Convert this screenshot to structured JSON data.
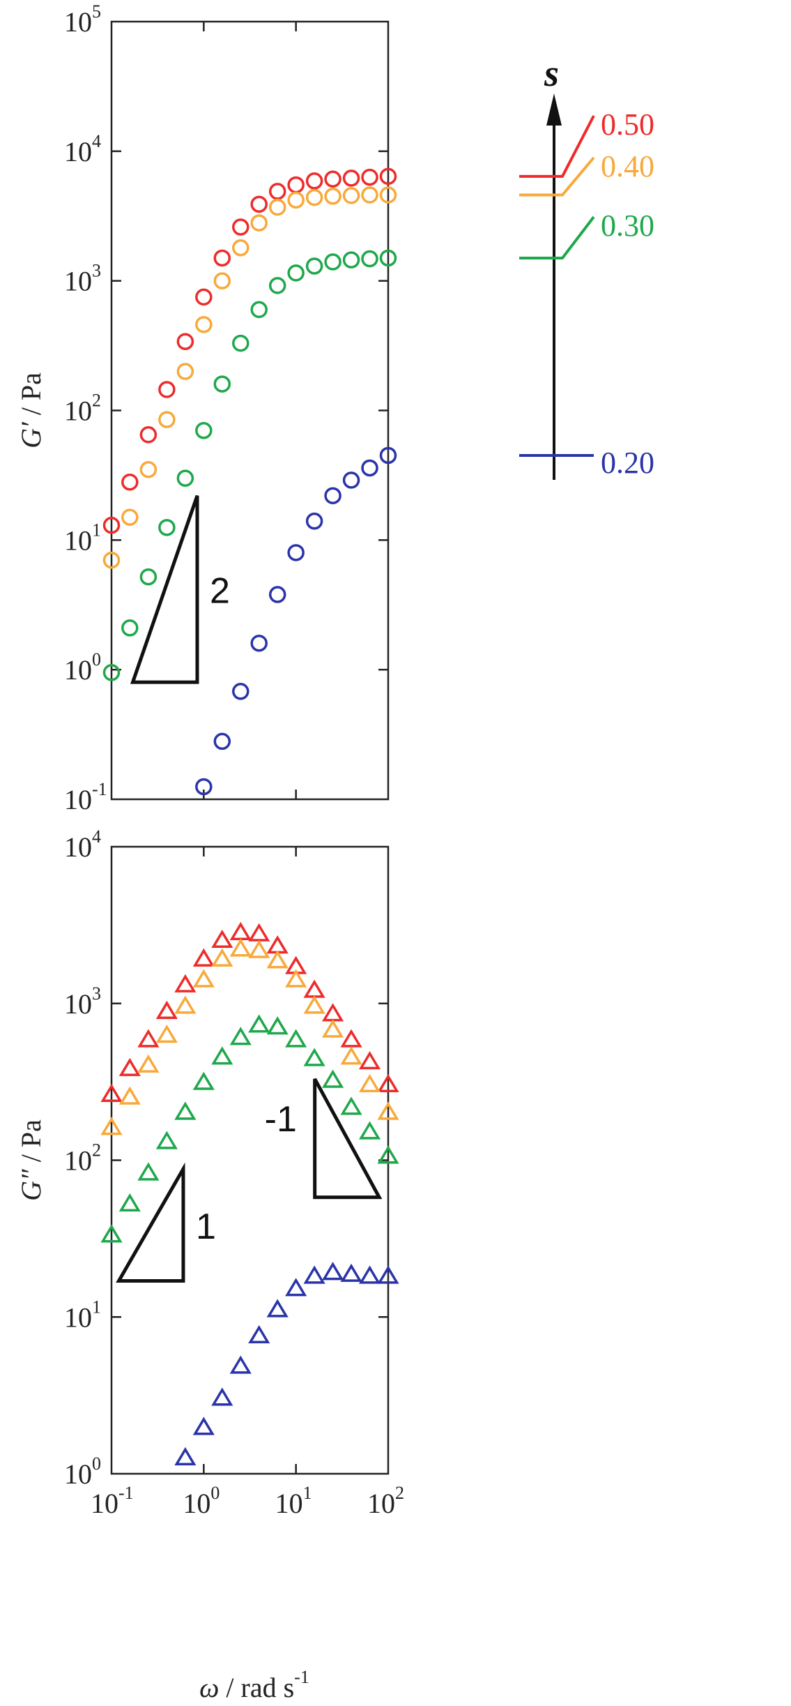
{
  "chart_data": [
    {
      "type": "scatter",
      "panel": "top",
      "ylabel_symbol": "G′",
      "ylabel_unit": " / Pa",
      "ylabel": "G′ / Pa",
      "xscale": "log",
      "yscale": "log",
      "xlim": [
        0.1,
        100
      ],
      "ylim": [
        0.1,
        100000
      ],
      "y_tick_exponents": [
        "5",
        "4",
        "3",
        "2",
        "1",
        "0",
        "-1"
      ],
      "marker": "circle",
      "series": [
        {
          "name": "0.50",
          "color": "#ee2b2b",
          "x": [
            0.1,
            0.158,
            0.251,
            0.398,
            0.631,
            1.0,
            1.585,
            2.512,
            3.981,
            6.31,
            10,
            15.85,
            25.12,
            39.81,
            63.1,
            100
          ],
          "y": [
            13,
            28,
            65,
            145,
            340,
            750,
            1500,
            2600,
            3900,
            4900,
            5500,
            5900,
            6100,
            6200,
            6300,
            6400
          ]
        },
        {
          "name": "0.40",
          "color": "#f8a93a",
          "x": [
            0.1,
            0.158,
            0.251,
            0.398,
            0.631,
            1.0,
            1.585,
            2.512,
            3.981,
            6.31,
            10,
            15.85,
            25.12,
            39.81,
            63.1,
            100
          ],
          "y": [
            7,
            15,
            35,
            85,
            200,
            460,
            1000,
            1800,
            2800,
            3700,
            4200,
            4400,
            4500,
            4550,
            4600,
            4600
          ]
        },
        {
          "name": "0.30",
          "color": "#1ea84b",
          "x": [
            0.1,
            0.158,
            0.251,
            0.398,
            0.631,
            1.0,
            1.585,
            2.512,
            3.981,
            6.31,
            10,
            15.85,
            25.12,
            39.81,
            63.1,
            100
          ],
          "y": [
            0.95,
            2.1,
            5.2,
            12.5,
            30,
            70,
            160,
            330,
            600,
            920,
            1150,
            1300,
            1400,
            1450,
            1480,
            1500
          ]
        },
        {
          "name": "0.20",
          "color": "#2a34a8",
          "x": [
            1.0,
            1.585,
            2.512,
            3.981,
            6.31,
            10,
            15.85,
            25.12,
            39.81,
            63.1,
            100
          ],
          "y": [
            0.125,
            0.28,
            0.68,
            1.6,
            3.8,
            8,
            14,
            22,
            29,
            36,
            45
          ]
        }
      ],
      "slope_triangle": {
        "label": "2",
        "points": [
          [
            0.17,
            0.8
          ],
          [
            0.85,
            0.8
          ],
          [
            0.85,
            22
          ]
        ]
      }
    },
    {
      "type": "scatter",
      "panel": "bottom",
      "ylabel_symbol": "G″",
      "ylabel_unit": " / Pa",
      "ylabel": "G″ / Pa",
      "xlabel_symbol": "ω",
      "xlabel_unit": " / rad s",
      "xlabel_exp": "-1",
      "xlabel": "ω / rad s-1",
      "xscale": "log",
      "yscale": "log",
      "xlim": [
        0.1,
        100
      ],
      "ylim": [
        1,
        10000
      ],
      "x_tick_exponents": [
        "-1",
        "0",
        "1",
        "2"
      ],
      "y_tick_exponents": [
        "4",
        "3",
        "2",
        "1",
        "0"
      ],
      "marker": "triangle",
      "series": [
        {
          "name": "0.50",
          "color": "#ee2b2b",
          "x": [
            0.1,
            0.158,
            0.251,
            0.398,
            0.631,
            1.0,
            1.585,
            2.512,
            3.981,
            6.31,
            10,
            15.85,
            25.12,
            39.81,
            63.1,
            100
          ],
          "y": [
            260,
            380,
            580,
            880,
            1300,
            1900,
            2500,
            2800,
            2750,
            2300,
            1700,
            1200,
            850,
            580,
            420,
            300
          ]
        },
        {
          "name": "0.40",
          "color": "#f8a93a",
          "x": [
            0.1,
            0.158,
            0.251,
            0.398,
            0.631,
            1.0,
            1.585,
            2.512,
            3.981,
            6.31,
            10,
            15.85,
            25.12,
            39.81,
            63.1,
            100
          ],
          "y": [
            160,
            250,
            400,
            620,
            950,
            1400,
            1900,
            2200,
            2150,
            1850,
            1400,
            950,
            670,
            450,
            300,
            200
          ]
        },
        {
          "name": "0.30",
          "color": "#1ea84b",
          "x": [
            0.1,
            0.158,
            0.251,
            0.398,
            0.631,
            1.0,
            1.585,
            2.512,
            3.981,
            6.31,
            10,
            15.85,
            25.12,
            39.81,
            63.1,
            100
          ],
          "y": [
            33,
            52,
            82,
            130,
            200,
            310,
            450,
            600,
            720,
            700,
            580,
            440,
            320,
            215,
            150,
            105
          ]
        },
        {
          "name": "0.20",
          "color": "#2a34a8",
          "x": [
            0.631,
            1.0,
            1.585,
            2.512,
            3.981,
            6.31,
            10,
            15.85,
            25.12,
            39.81,
            63.1,
            100
          ],
          "y": [
            1.25,
            1.95,
            3.0,
            4.8,
            7.5,
            11,
            15,
            18,
            19,
            18.5,
            18,
            18
          ]
        }
      ],
      "slope_triangles": [
        {
          "label": "1",
          "points": [
            [
              0.12,
              17
            ],
            [
              0.6,
              17
            ],
            [
              0.6,
              88
            ]
          ]
        },
        {
          "label": "-1",
          "points": [
            [
              16,
              330
            ],
            [
              16,
              58
            ],
            [
              80,
              58
            ]
          ]
        }
      ]
    }
  ],
  "legend": {
    "arrow_label": "s",
    "entries": [
      {
        "label": "0.50",
        "color": "#ee2b2b",
        "value": 6400
      },
      {
        "label": "0.40",
        "color": "#f8a93a",
        "value": 4600
      },
      {
        "label": "0.30",
        "color": "#1ea84b",
        "value": 1500
      },
      {
        "label": "0.20",
        "color": "#2a34a8",
        "value": 45
      }
    ]
  }
}
